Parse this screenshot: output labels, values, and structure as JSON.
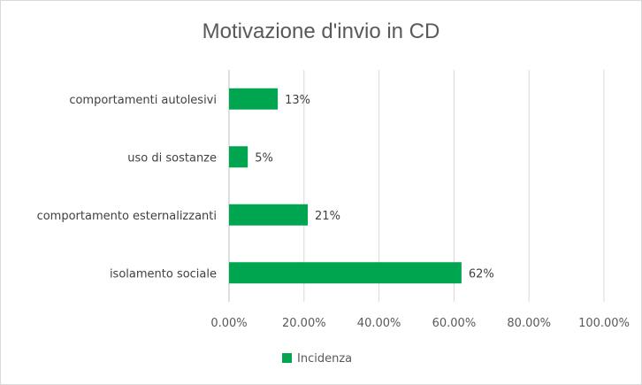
{
  "chart_data": {
    "type": "bar",
    "orientation": "horizontal",
    "title": "Motivazione d'invio in CD",
    "categories": [
      "comportamenti autolesivi",
      "uso di sostanze",
      "comportamento esternalizzanti",
      "isolamento sociale"
    ],
    "series": [
      {
        "name": "Incidenza",
        "values": [
          0.13,
          0.05,
          0.21,
          0.62
        ],
        "data_labels": [
          "13%",
          "5%",
          "21%",
          "62%"
        ],
        "color": "#00A54F"
      }
    ],
    "xlim": [
      0,
      1
    ],
    "x_ticks": [
      0,
      0.2,
      0.4,
      0.6,
      0.8,
      1.0
    ],
    "x_tick_labels": [
      "0.00%",
      "20.00%",
      "40.00%",
      "60.00%",
      "80.00%",
      "100.00%"
    ],
    "xlabel": "",
    "ylabel": "",
    "grid": "vertical",
    "legend": "bottom"
  }
}
